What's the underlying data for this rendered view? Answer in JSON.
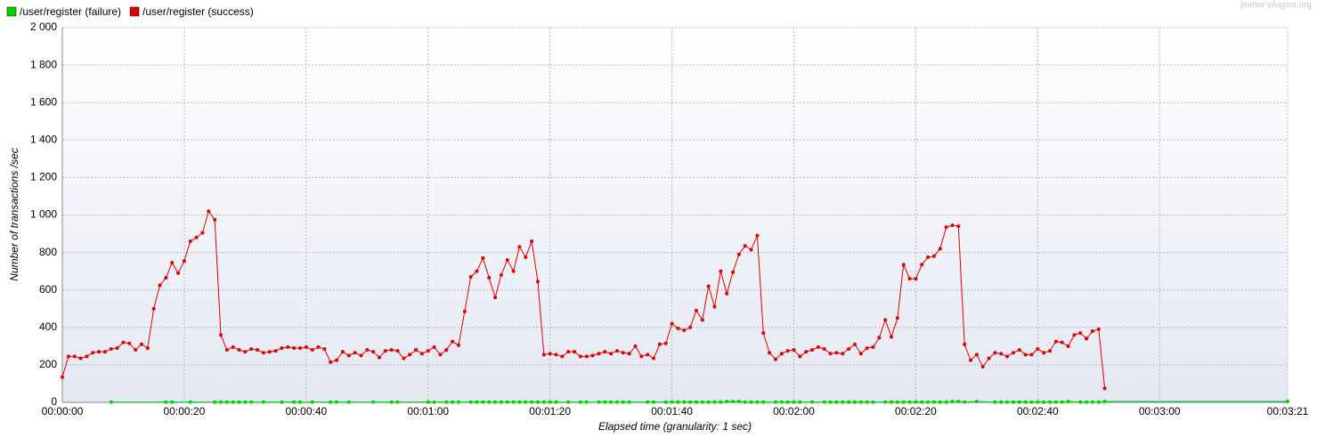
{
  "chart_data": {
    "type": "line",
    "watermark": "jmeter-plugins.org",
    "xlabel": "Elapsed time (granularity: 1 sec)",
    "ylabel": "Number of transactions /sec",
    "xlim": [
      0,
      201
    ],
    "ylim": [
      0,
      2000
    ],
    "xticks": [
      {
        "value": 0,
        "label": "00:00:00"
      },
      {
        "value": 20,
        "label": "00:00:20"
      },
      {
        "value": 40,
        "label": "00:00:40"
      },
      {
        "value": 60,
        "label": "00:01:00"
      },
      {
        "value": 80,
        "label": "00:01:20"
      },
      {
        "value": 100,
        "label": "00:01:40"
      },
      {
        "value": 120,
        "label": "00:02:00"
      },
      {
        "value": 140,
        "label": "00:02:20"
      },
      {
        "value": 160,
        "label": "00:02:40"
      },
      {
        "value": 180,
        "label": "00:03:00"
      },
      {
        "value": 201,
        "label": "00:03:21"
      }
    ],
    "yticks": [
      0,
      200,
      400,
      600,
      800,
      {
        "value": 1000,
        "label": "1 000"
      },
      {
        "value": 1200,
        "label": "1 200"
      },
      {
        "value": 1400,
        "label": "1 400"
      },
      {
        "value": 1600,
        "label": "1 600"
      },
      {
        "value": 1800,
        "label": "1 800"
      },
      {
        "value": 2000,
        "label": "2 000"
      }
    ],
    "grid": true,
    "series": [
      {
        "name": "/user/register (failure)",
        "color": "#00d000",
        "x": [
          8,
          17,
          18,
          21,
          25,
          26,
          27,
          28,
          29,
          30,
          31,
          33,
          36,
          38,
          39,
          41,
          44,
          45,
          47,
          51,
          54,
          55,
          60,
          61,
          63,
          64,
          65,
          67,
          68,
          69,
          70,
          71,
          72,
          73,
          74,
          75,
          76,
          77,
          78,
          79,
          80,
          81,
          83,
          85,
          86,
          88,
          89,
          90,
          91,
          92,
          93,
          96,
          97,
          99,
          100,
          101,
          102,
          103,
          104,
          105,
          106,
          107,
          108,
          109,
          110,
          111,
          112,
          113,
          114,
          115,
          117,
          118,
          119,
          120,
          121,
          123,
          125,
          126,
          127,
          128,
          129,
          130,
          131,
          132,
          133,
          135,
          136,
          137,
          138,
          139,
          140,
          141,
          142,
          143,
          144,
          145,
          146,
          147,
          148,
          150,
          153,
          154,
          155,
          156,
          157,
          158,
          159,
          160,
          161,
          162,
          163,
          164,
          165,
          167,
          168,
          169,
          170,
          171,
          201
        ],
        "values": [
          2,
          2,
          2,
          2,
          2,
          2,
          2,
          2,
          2,
          2,
          2,
          2,
          2,
          2,
          2,
          2,
          2,
          2,
          2,
          2,
          2,
          2,
          2,
          2,
          2,
          2,
          2,
          2,
          2,
          2,
          2,
          2,
          2,
          2,
          2,
          2,
          2,
          2,
          2,
          2,
          2,
          2,
          2,
          2,
          2,
          2,
          2,
          2,
          2,
          2,
          2,
          2,
          2,
          2,
          2,
          2,
          2,
          2,
          2,
          2,
          2,
          2,
          2,
          5,
          5,
          5,
          2,
          2,
          2,
          2,
          2,
          2,
          2,
          2,
          2,
          2,
          2,
          2,
          2,
          2,
          2,
          2,
          2,
          2,
          2,
          2,
          2,
          2,
          2,
          2,
          2,
          2,
          2,
          2,
          2,
          2,
          5,
          5,
          2,
          5,
          2,
          2,
          2,
          2,
          2,
          2,
          2,
          2,
          2,
          2,
          2,
          2,
          5,
          2,
          2,
          2,
          2,
          5,
          5
        ]
      },
      {
        "name": "/user/register (success)",
        "color": "#e00000",
        "x": [
          0,
          1,
          2,
          3,
          4,
          5,
          6,
          7,
          8,
          9,
          10,
          11,
          12,
          13,
          14,
          15,
          16,
          17,
          18,
          19,
          20,
          21,
          22,
          23,
          24,
          25,
          26,
          27,
          28,
          29,
          30,
          31,
          32,
          33,
          34,
          35,
          36,
          37,
          38,
          39,
          40,
          41,
          42,
          43,
          44,
          45,
          46,
          47,
          48,
          49,
          50,
          51,
          52,
          53,
          54,
          55,
          56,
          57,
          58,
          59,
          60,
          61,
          62,
          63,
          64,
          65,
          66,
          67,
          68,
          69,
          70,
          71,
          72,
          73,
          74,
          75,
          76,
          77,
          78,
          79,
          80,
          81,
          82,
          83,
          84,
          85,
          86,
          87,
          88,
          89,
          90,
          91,
          92,
          93,
          94,
          95,
          96,
          97,
          98,
          99,
          100,
          101,
          102,
          103,
          104,
          105,
          106,
          107,
          108,
          109,
          110,
          111,
          112,
          113,
          114,
          115,
          116,
          117,
          118,
          119,
          120,
          121,
          122,
          123,
          124,
          125,
          126,
          127,
          128,
          129,
          130,
          131,
          132,
          133,
          134,
          135,
          136,
          137,
          138,
          139,
          140,
          141,
          142,
          143,
          144,
          145,
          146,
          147,
          148,
          149,
          150,
          151,
          152,
          153,
          154,
          155,
          156,
          157,
          158,
          159,
          160,
          161,
          162,
          163,
          164,
          165,
          166,
          167,
          168,
          169,
          170,
          171
        ],
        "values": [
          135,
          245,
          245,
          235,
          245,
          265,
          270,
          270,
          285,
          290,
          320,
          315,
          280,
          310,
          290,
          500,
          625,
          665,
          745,
          690,
          755,
          860,
          880,
          905,
          1020,
          975,
          360,
          280,
          295,
          280,
          270,
          285,
          280,
          265,
          270,
          275,
          290,
          295,
          290,
          290,
          295,
          280,
          295,
          285,
          215,
          225,
          270,
          250,
          265,
          250,
          280,
          270,
          240,
          275,
          280,
          275,
          235,
          255,
          280,
          260,
          275,
          295,
          255,
          280,
          325,
          305,
          485,
          670,
          700,
          770,
          665,
          560,
          680,
          760,
          700,
          830,
          775,
          860,
          645,
          255,
          260,
          255,
          245,
          270,
          270,
          245,
          245,
          250,
          260,
          270,
          260,
          275,
          265,
          260,
          300,
          245,
          255,
          235,
          310,
          315,
          420,
          395,
          385,
          400,
          490,
          440,
          620,
          510,
          700,
          580,
          695,
          790,
          835,
          815,
          890,
          370,
          265,
          230,
          260,
          275,
          280,
          245,
          270,
          280,
          295,
          285,
          260,
          265,
          260,
          285,
          310,
          260,
          290,
          295,
          345,
          440,
          350,
          450,
          735,
          660,
          660,
          735,
          775,
          780,
          820,
          935,
          945,
          940,
          310,
          225,
          255,
          190,
          235,
          265,
          260,
          245,
          265,
          280,
          255,
          255,
          285,
          265,
          275,
          325,
          320,
          300,
          360,
          370,
          340,
          380,
          390,
          75
        ]
      }
    ]
  }
}
